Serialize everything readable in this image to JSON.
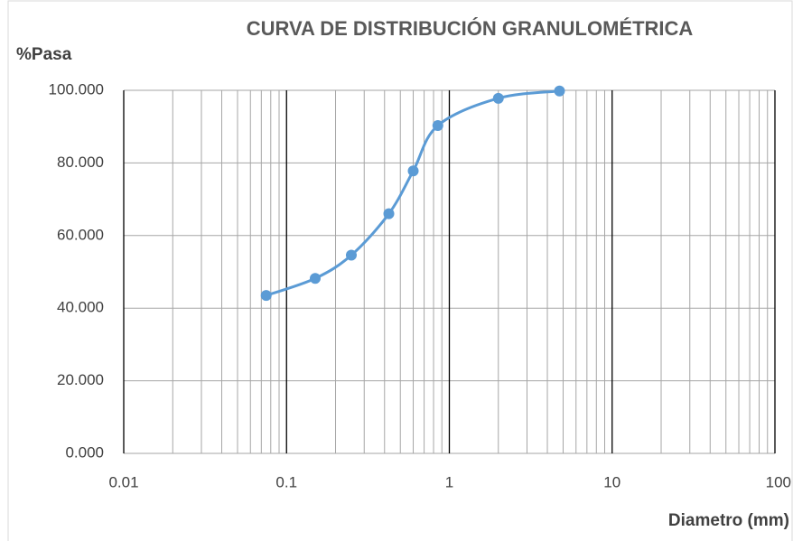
{
  "chart_data": {
    "type": "line",
    "title": "CURVA DE DISTRIBUCIÓN GRANULOMÉTRICA",
    "y_label": "%Pasa",
    "x_label": "Diametro (mm)",
    "x": [
      0.075,
      0.15,
      0.25,
      0.425,
      0.6,
      0.85,
      2.0,
      4.75
    ],
    "series": [
      {
        "name": "%Pasa",
        "color": "#5b9bd5",
        "values": [
          43.5,
          48.2,
          54.6,
          66.0,
          77.8,
          90.3,
          97.8,
          99.8
        ]
      }
    ],
    "xlim": [
      0.01,
      100
    ],
    "xticks": [
      0.01,
      0.1,
      1,
      10,
      100
    ],
    "x_log": true,
    "ylim": [
      0,
      100
    ],
    "yticks": [
      {
        "value": 0,
        "label": "0.000"
      },
      {
        "value": 20,
        "label": "20.000"
      },
      {
        "value": 40,
        "label": "40.000"
      },
      {
        "value": 60,
        "label": "60.000"
      },
      {
        "value": 80,
        "label": "80.000"
      },
      {
        "value": 100,
        "label": "100.000"
      }
    ],
    "grid": true,
    "minor_grid": true,
    "smooth": true
  }
}
